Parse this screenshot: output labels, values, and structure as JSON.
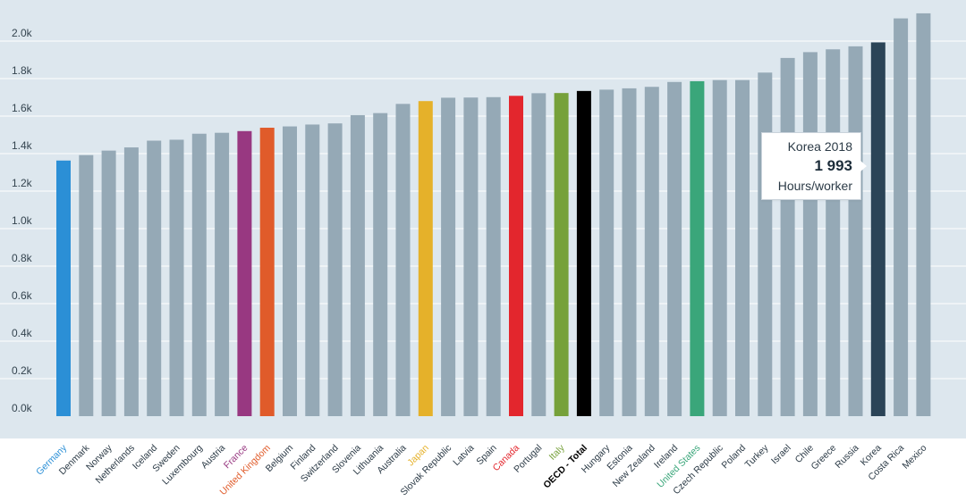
{
  "chart_data": {
    "type": "bar",
    "ylim": [
      0,
      2100
    ],
    "y_ticks": [
      {
        "value": 0,
        "label": "0.0k"
      },
      {
        "value": 200,
        "label": "0.2k"
      },
      {
        "value": 400,
        "label": "0.4k"
      },
      {
        "value": 600,
        "label": "0.6k"
      },
      {
        "value": 800,
        "label": "0.8k"
      },
      {
        "value": 1000,
        "label": "1.0k"
      },
      {
        "value": 1200,
        "label": "1.2k"
      },
      {
        "value": 1400,
        "label": "1.4k"
      },
      {
        "value": 1600,
        "label": "1.6k"
      },
      {
        "value": 1800,
        "label": "1.8k"
      },
      {
        "value": 2000,
        "label": "2.0k"
      }
    ],
    "categories": [
      "Germany",
      "Denmark",
      "Norway",
      "Netherlands",
      "Iceland",
      "Sweden",
      "Luxembourg",
      "Austria",
      "France",
      "United Kingdom",
      "Belgium",
      "Finland",
      "Switzerland",
      "Slovenia",
      "Lithuania",
      "Australia",
      "Japan",
      "Slovak Republic",
      "Latvia",
      "Spain",
      "Canada",
      "Portugal",
      "Italy",
      "OECD - Total",
      "Hungary",
      "Estonia",
      "New Zealand",
      "Ireland",
      "United States",
      "Czech Republic",
      "Poland",
      "Turkey",
      "Israel",
      "Chile",
      "Greece",
      "Russia",
      "Korea",
      "Costa Rica",
      "Mexico"
    ],
    "values": [
      1363,
      1392,
      1416,
      1433,
      1469,
      1474,
      1506,
      1511,
      1520,
      1538,
      1545,
      1555,
      1561,
      1605,
      1616,
      1665,
      1680,
      1698,
      1699,
      1701,
      1708,
      1722,
      1723,
      1734,
      1741,
      1748,
      1756,
      1782,
      1786,
      1792,
      1792,
      1832,
      1910,
      1941,
      1956,
      1972,
      1993,
      2121,
      2148
    ],
    "highlight_colors": {
      "Germany": "#2b8fd6",
      "France": "#983881",
      "United Kingdom": "#e05b2a",
      "Japan": "#e5b12a",
      "Canada": "#e3262d",
      "Italy": "#76a13a",
      "OECD - Total": "#000000",
      "United States": "#3aa67a",
      "Korea": "#2b4457"
    },
    "bold_labels": [
      "OECD - Total"
    ],
    "default_bar_color": "#95a9b6",
    "default_label_color": "#2b3a46",
    "plot_background": "#dde7ee",
    "tooltip": {
      "title": "Korea 2018",
      "value": "1 993",
      "unit": "Hours/worker"
    }
  }
}
